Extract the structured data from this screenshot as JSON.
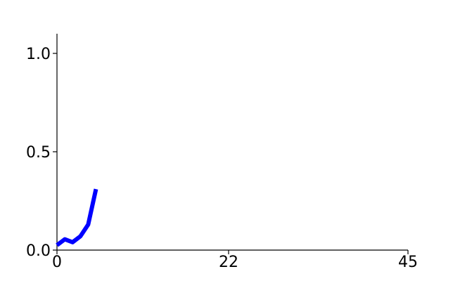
{
  "chart_data": {
    "type": "line",
    "title": "",
    "xlabel": "",
    "ylabel": "",
    "xlim": [
      0,
      45
    ],
    "ylim": [
      0,
      1.1
    ],
    "xticks": [
      0,
      22,
      45
    ],
    "xtick_labels": [
      "0",
      "22",
      "45"
    ],
    "yticks": [
      0,
      0.5,
      1.0
    ],
    "ytick_labels": [
      "0.0",
      "0.5",
      "1.0"
    ],
    "grid": false,
    "legend": "none",
    "series": [
      {
        "color": "#0000ff",
        "x": [
          0,
          1,
          2,
          3,
          4,
          5
        ],
        "y": [
          0.025,
          0.055,
          0.04,
          0.07,
          0.13,
          0.31
        ]
      }
    ]
  }
}
